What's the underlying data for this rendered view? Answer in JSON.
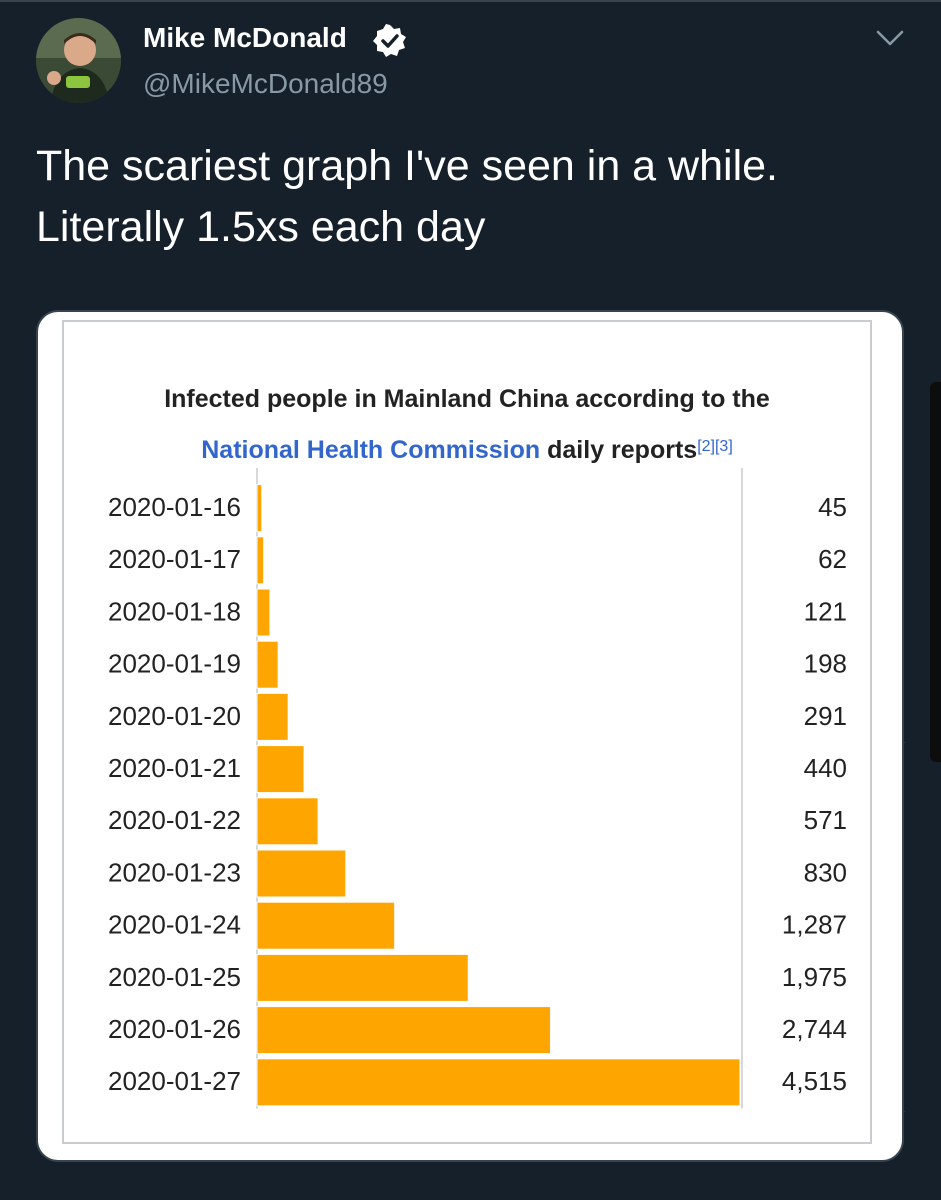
{
  "tweet": {
    "display_name": "Mike McDonald",
    "handle": "@MikeMcDonald89",
    "text_line1": "The scariest graph I've seen in a while.",
    "text_line2": "Literally 1.5xs each day",
    "verified": true
  },
  "icons": {
    "verified": "verified-badge-icon",
    "menu": "chevron-down-icon",
    "avatar": "user-avatar"
  },
  "colors": {
    "background": "#15202b",
    "bar": "#ffa500",
    "link": "#3366cc",
    "text": "#222222"
  },
  "chart_data": {
    "type": "bar",
    "orientation": "horizontal",
    "title_line1": "Infected people in Mainland China according to the",
    "title_link": "National Health Commission",
    "title_rest": " daily reports",
    "title_refs": "[2][3]",
    "categories": [
      "2020-01-16",
      "2020-01-17",
      "2020-01-18",
      "2020-01-19",
      "2020-01-20",
      "2020-01-21",
      "2020-01-22",
      "2020-01-23",
      "2020-01-24",
      "2020-01-25",
      "2020-01-26",
      "2020-01-27"
    ],
    "values": [
      45,
      62,
      121,
      198,
      291,
      440,
      571,
      830,
      1287,
      1975,
      2744,
      4515
    ],
    "value_labels": [
      "45",
      "62",
      "121",
      "198",
      "291",
      "440",
      "571",
      "830",
      "1,287",
      "1,975",
      "2,744",
      "4,515"
    ],
    "xlim": [
      0,
      4515
    ],
    "bar_color": "#ffa500",
    "grid": false
  }
}
